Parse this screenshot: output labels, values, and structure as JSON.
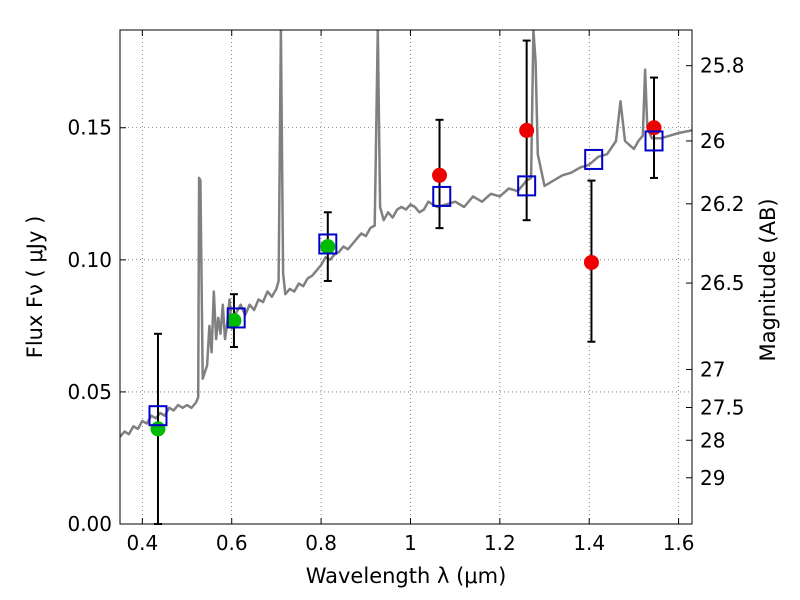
{
  "chart_data": {
    "type": "scatter",
    "xlabel": "Wavelength  λ (μm)",
    "ylabel": "Flux  Fν  ( μJy )",
    "y2label": "Magnitude (AB)",
    "xlim": [
      0.35,
      1.63
    ],
    "ylim": [
      0.0,
      0.187
    ],
    "grid": true,
    "x_ticks": [
      {
        "value": 0.4,
        "label": "0.4"
      },
      {
        "value": 0.6,
        "label": "0.6"
      },
      {
        "value": 0.8,
        "label": "0.8"
      },
      {
        "value": 1.0,
        "label": "1"
      },
      {
        "value": 1.2,
        "label": "1.2"
      },
      {
        "value": 1.4,
        "label": "1.4"
      },
      {
        "value": 1.6,
        "label": "1.6"
      }
    ],
    "y_ticks": [
      {
        "value": 0.0,
        "label": "0.00"
      },
      {
        "value": 0.05,
        "label": "0.05"
      },
      {
        "value": 0.1,
        "label": "0.10"
      },
      {
        "value": 0.15,
        "label": "0.15"
      }
    ],
    "y2_ticks": [
      {
        "flux": 0.0175,
        "label": "29"
      },
      {
        "flux": 0.0317,
        "label": "28"
      },
      {
        "flux": 0.0441,
        "label": "27.5"
      },
      {
        "flux": 0.0585,
        "label": "27"
      },
      {
        "flux": 0.0912,
        "label": "26.5"
      },
      {
        "flux": 0.1212,
        "label": "26.2"
      },
      {
        "flux": 0.145,
        "label": "26"
      },
      {
        "flux": 0.1735,
        "label": "25.8"
      }
    ],
    "colors": {
      "template": "#808080",
      "green": "#00bb00",
      "red": "#ee0000",
      "model": "#0000cc",
      "errorbar": "#000000"
    },
    "template_spectrum": [
      [
        0.35,
        0.033
      ],
      [
        0.36,
        0.035
      ],
      [
        0.37,
        0.034
      ],
      [
        0.38,
        0.037
      ],
      [
        0.39,
        0.036
      ],
      [
        0.4,
        0.039
      ],
      [
        0.41,
        0.038
      ],
      [
        0.42,
        0.041
      ],
      [
        0.43,
        0.04
      ],
      [
        0.44,
        0.042
      ],
      [
        0.45,
        0.041
      ],
      [
        0.46,
        0.044
      ],
      [
        0.47,
        0.043
      ],
      [
        0.48,
        0.045
      ],
      [
        0.49,
        0.044
      ],
      [
        0.5,
        0.045
      ],
      [
        0.51,
        0.044
      ],
      [
        0.52,
        0.046
      ],
      [
        0.525,
        0.048
      ],
      [
        0.527,
        0.131
      ],
      [
        0.53,
        0.13
      ],
      [
        0.535,
        0.055
      ],
      [
        0.545,
        0.06
      ],
      [
        0.55,
        0.075
      ],
      [
        0.555,
        0.065
      ],
      [
        0.56,
        0.088
      ],
      [
        0.565,
        0.07
      ],
      [
        0.57,
        0.078
      ],
      [
        0.575,
        0.072
      ],
      [
        0.58,
        0.083
      ],
      [
        0.585,
        0.07
      ],
      [
        0.59,
        0.076
      ],
      [
        0.595,
        0.085
      ],
      [
        0.6,
        0.074
      ],
      [
        0.61,
        0.08
      ],
      [
        0.62,
        0.083
      ],
      [
        0.63,
        0.079
      ],
      [
        0.64,
        0.083
      ],
      [
        0.65,
        0.081
      ],
      [
        0.66,
        0.085
      ],
      [
        0.67,
        0.084
      ],
      [
        0.68,
        0.088
      ],
      [
        0.69,
        0.086
      ],
      [
        0.7,
        0.089
      ],
      [
        0.705,
        0.092
      ],
      [
        0.71,
        0.187
      ],
      [
        0.715,
        0.095
      ],
      [
        0.72,
        0.087
      ],
      [
        0.73,
        0.089
      ],
      [
        0.74,
        0.088
      ],
      [
        0.75,
        0.091
      ],
      [
        0.76,
        0.09
      ],
      [
        0.77,
        0.093
      ],
      [
        0.78,
        0.094
      ],
      [
        0.79,
        0.096
      ],
      [
        0.8,
        0.098
      ],
      [
        0.81,
        0.101
      ],
      [
        0.82,
        0.1
      ],
      [
        0.83,
        0.102
      ],
      [
        0.84,
        0.103
      ],
      [
        0.85,
        0.105
      ],
      [
        0.86,
        0.104
      ],
      [
        0.87,
        0.106
      ],
      [
        0.88,
        0.108
      ],
      [
        0.89,
        0.11
      ],
      [
        0.9,
        0.109
      ],
      [
        0.91,
        0.112
      ],
      [
        0.92,
        0.113
      ],
      [
        0.927,
        0.187
      ],
      [
        0.932,
        0.12
      ],
      [
        0.94,
        0.115
      ],
      [
        0.95,
        0.118
      ],
      [
        0.96,
        0.116
      ],
      [
        0.97,
        0.119
      ],
      [
        0.98,
        0.12
      ],
      [
        0.99,
        0.119
      ],
      [
        1.0,
        0.121
      ],
      [
        1.01,
        0.12
      ],
      [
        1.02,
        0.118
      ],
      [
        1.03,
        0.119
      ],
      [
        1.04,
        0.122
      ],
      [
        1.05,
        0.121
      ],
      [
        1.06,
        0.12
      ],
      [
        1.08,
        0.121
      ],
      [
        1.1,
        0.122
      ],
      [
        1.12,
        0.12
      ],
      [
        1.14,
        0.124
      ],
      [
        1.16,
        0.122
      ],
      [
        1.18,
        0.125
      ],
      [
        1.2,
        0.124
      ],
      [
        1.22,
        0.127
      ],
      [
        1.24,
        0.126
      ],
      [
        1.26,
        0.13
      ],
      [
        1.27,
        0.131
      ],
      [
        1.275,
        0.187
      ],
      [
        1.28,
        0.175
      ],
      [
        1.285,
        0.14
      ],
      [
        1.3,
        0.128
      ],
      [
        1.32,
        0.13
      ],
      [
        1.34,
        0.132
      ],
      [
        1.36,
        0.133
      ],
      [
        1.38,
        0.135
      ],
      [
        1.4,
        0.136
      ],
      [
        1.42,
        0.139
      ],
      [
        1.44,
        0.14
      ],
      [
        1.46,
        0.145
      ],
      [
        1.47,
        0.16
      ],
      [
        1.48,
        0.145
      ],
      [
        1.5,
        0.142
      ],
      [
        1.51,
        0.145
      ],
      [
        1.52,
        0.147
      ],
      [
        1.525,
        0.172
      ],
      [
        1.53,
        0.15
      ],
      [
        1.54,
        0.146
      ],
      [
        1.56,
        0.146
      ],
      [
        1.58,
        0.147
      ],
      [
        1.6,
        0.148
      ],
      [
        1.63,
        0.149
      ]
    ],
    "series": [
      {
        "marker": "circle",
        "color": "green",
        "points": [
          {
            "x": 0.435,
            "y": 0.036,
            "err_low": 0.036,
            "err_high": 0.036
          },
          {
            "x": 0.605,
            "y": 0.077,
            "err_low": 0.01,
            "err_high": 0.01
          },
          {
            "x": 0.815,
            "y": 0.105,
            "err_low": 0.013,
            "err_high": 0.013
          }
        ]
      },
      {
        "marker": "circle",
        "color": "red",
        "points": [
          {
            "x": 1.065,
            "y": 0.132,
            "err_low": 0.02,
            "err_high": 0.021
          },
          {
            "x": 1.26,
            "y": 0.149,
            "err_low": 0.034,
            "err_high": 0.034
          },
          {
            "x": 1.405,
            "y": 0.099,
            "err_low": 0.03,
            "err_high": 0.031
          },
          {
            "x": 1.545,
            "y": 0.15,
            "err_low": 0.019,
            "err_high": 0.019
          }
        ]
      },
      {
        "marker": "square",
        "color": "model",
        "points": [
          {
            "x": 0.435,
            "y": 0.041
          },
          {
            "x": 0.61,
            "y": 0.078
          },
          {
            "x": 0.815,
            "y": 0.106
          },
          {
            "x": 1.07,
            "y": 0.124
          },
          {
            "x": 1.26,
            "y": 0.128
          },
          {
            "x": 1.41,
            "y": 0.138
          },
          {
            "x": 1.545,
            "y": 0.145
          }
        ]
      }
    ]
  }
}
